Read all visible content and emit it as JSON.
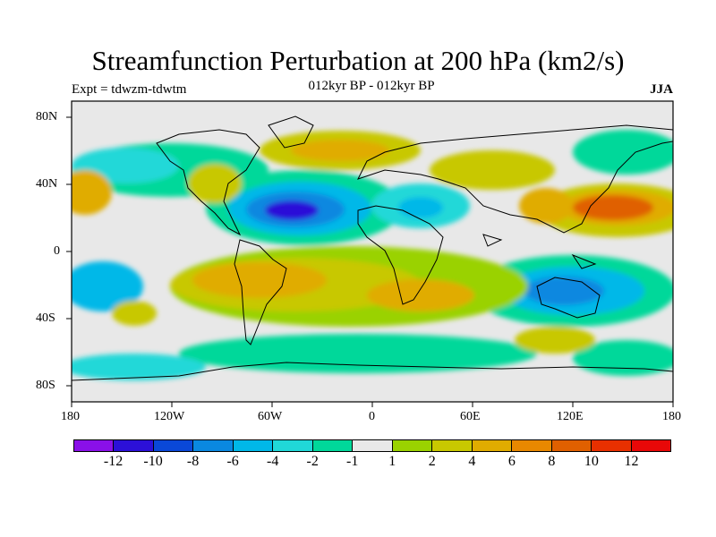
{
  "title": "Streamfunction Perturbation at 200 hPa (km2/s)",
  "left_label": "Expt = tdwzm-tdwtm",
  "center_label": "012kyr BP - 012kyr BP",
  "right_label": "JJA",
  "lat_ticks": [
    "80N",
    "40N",
    "0",
    "40S",
    "80S"
  ],
  "lon_ticks": [
    "180",
    "120W",
    "60W",
    "0",
    "60E",
    "120E",
    "180"
  ],
  "colorbar": {
    "labels": [
      "-12",
      "-10",
      "-8",
      "-6",
      "-4",
      "-2",
      "-1",
      "1",
      "2",
      "4",
      "6",
      "8",
      "10",
      "12"
    ],
    "colors": [
      "#8a10e8",
      "#2c10d8",
      "#0a48d8",
      "#0a88e0",
      "#00b8e8",
      "#20d8d8",
      "#00d89a",
      "#e8e8e8",
      "#9ad200",
      "#c8c800",
      "#e0ac00",
      "#e88800",
      "#e06000",
      "#e83000",
      "#e80808"
    ]
  },
  "chart_data": {
    "type": "heatmap",
    "variable": "Streamfunction Perturbation at 200 hPa",
    "units": "km2/s",
    "contour_levels": [
      -12,
      -10,
      -8,
      -6,
      -4,
      -2,
      -1,
      1,
      2,
      4,
      6,
      8,
      10,
      12
    ],
    "xlim": [
      -180,
      180
    ],
    "ylim": [
      -90,
      90
    ],
    "features": [
      {
        "lon": -45,
        "lat": 25,
        "approx_value": -11
      },
      {
        "lon": 30,
        "lat": 40,
        "approx_value": -4
      },
      {
        "lon": 120,
        "lat": -25,
        "approx_value": -7
      },
      {
        "lon": -160,
        "lat": -20,
        "approx_value": -4
      },
      {
        "lon": 150,
        "lat": 30,
        "approx_value": 10
      },
      {
        "lon": -170,
        "lat": 35,
        "approx_value": 7
      },
      {
        "lon": -70,
        "lat": -20,
        "approx_value": 7
      },
      {
        "lon": 20,
        "lat": -25,
        "approx_value": 6
      },
      {
        "lon": 0,
        "lat": 65,
        "approx_value": 5
      },
      {
        "lon": 90,
        "lat": 40,
        "approx_value": 5
      },
      {
        "lon": 110,
        "lat": -55,
        "approx_value": 4
      },
      {
        "lon": -160,
        "lat": -40,
        "approx_value": 5
      }
    ]
  }
}
